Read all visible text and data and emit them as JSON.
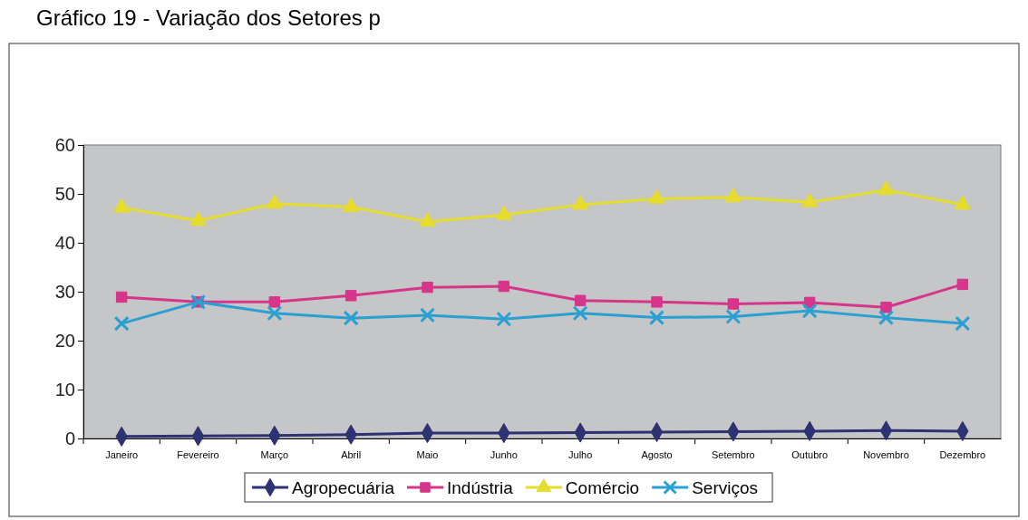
{
  "chart_data": {
    "type": "line",
    "title": "Gráfico 19 - Variação dos Setores p",
    "categories": [
      "Janeiro",
      "Fevereiro",
      "Março",
      "Abril",
      "Maio",
      "Junho",
      "Julho",
      "Agosto",
      "Setembro",
      "Outubro",
      "Novembro",
      "Dezembro"
    ],
    "ylim": [
      0,
      60
    ],
    "yticks": [
      0,
      10,
      20,
      30,
      40,
      50,
      60
    ],
    "legend": "bottom",
    "series": [
      {
        "name": "Agropecuária",
        "color": "#2e3172",
        "marker": "diamond",
        "values": [
          0.4,
          0.5,
          0.6,
          0.8,
          1.1,
          1.1,
          1.2,
          1.3,
          1.4,
          1.5,
          1.6,
          1.5
        ]
      },
      {
        "name": "Indústria",
        "color": "#d6358a",
        "marker": "square",
        "values": [
          28.9,
          27.9,
          27.9,
          29.2,
          30.9,
          31.1,
          28.2,
          27.9,
          27.5,
          27.8,
          26.8,
          31.5
        ]
      },
      {
        "name": "Comércio",
        "color": "#e6dc2e",
        "marker": "triangle",
        "values": [
          47.2,
          44.5,
          48.0,
          47.3,
          44.3,
          45.7,
          47.8,
          49.0,
          49.3,
          48.3,
          50.8,
          47.8
        ]
      },
      {
        "name": "Serviços",
        "color": "#2aa0d2",
        "marker": "cross",
        "values": [
          23.5,
          27.9,
          25.6,
          24.6,
          25.2,
          24.4,
          25.6,
          24.7,
          24.9,
          26.1,
          24.7,
          23.5
        ]
      }
    ]
  }
}
